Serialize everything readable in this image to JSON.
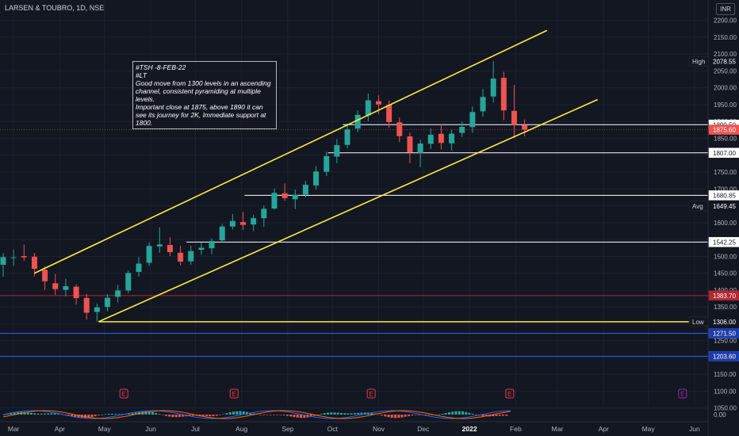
{
  "header": {
    "symbol_line": "LARSEN & TOUBRO, 1D, NSE",
    "currency": "INR"
  },
  "note": {
    "lines": [
      "#TSH -8-FEB-22",
      "#LT",
      "Good move from 1300 levels in an ascending channel, consistent pyramiding at multiple levels.",
      "Important close at 1875, above 1890 it can see its journey for 2K, Immediate support at 1800."
    ]
  },
  "chart_data": {
    "type": "candlestick",
    "price_axis": {
      "ticks": [
        "2200.00",
        "2150.00",
        "2100.00",
        "2050.00",
        "2000.00",
        "1950.00",
        "1900.00",
        "1850.00",
        "1800.00",
        "1750.00",
        "1700.00",
        "1650.00",
        "1600.00",
        "1550.00",
        "1500.00",
        "1450.00",
        "1400.00",
        "1350.00",
        "1300.00",
        "1250.00",
        "1200.00",
        "1150.00",
        "1100.00",
        "1050.00"
      ],
      "range": [
        1040,
        2225
      ]
    },
    "time_axis": {
      "labels": [
        "Mar",
        "Apr",
        "May",
        "Jun",
        "Jul",
        "Aug",
        "Sep",
        "Oct",
        "Nov",
        "Dec",
        "2022",
        "Feb",
        "Mar",
        "Apr",
        "May",
        "Jun"
      ]
    },
    "price_labels": [
      {
        "label": "High",
        "value": "2078.55",
        "style": "tag"
      },
      {
        "label": "",
        "value": "1890.50",
        "style": "line"
      },
      {
        "label": "",
        "value": "1875.60",
        "style": "last"
      },
      {
        "label": "",
        "value": "1807.00",
        "style": "line"
      },
      {
        "label": "",
        "value": "1680.85",
        "style": "line"
      },
      {
        "label": "Avg",
        "value": "1649.45",
        "style": "tag"
      },
      {
        "label": "",
        "value": "1542.25",
        "style": "line"
      },
      {
        "label": "",
        "value": "1383.70",
        "style": "red"
      },
      {
        "label": "Low",
        "value": "1306.00",
        "style": "tag"
      },
      {
        "label": "",
        "value": "1271.50",
        "style": "blue"
      },
      {
        "label": "",
        "value": "1203.60",
        "style": "blue"
      }
    ],
    "levels": [
      {
        "value": 1890.5,
        "from": "2021-10-08"
      },
      {
        "value": 1807.0,
        "from": "2021-09-28"
      },
      {
        "value": 1680.85,
        "from": "2021-08-03"
      },
      {
        "value": 1542.25,
        "from": "2021-06-25"
      }
    ],
    "channel": {
      "upper": [
        [
          "2021-03-15",
          1450
        ],
        [
          "2022-02-22",
          2170
        ]
      ],
      "lower": [
        [
          "2021-04-27",
          1306
        ],
        [
          "2022-03-28",
          1965
        ]
      ],
      "base": [
        [
          "2021-04-27",
          1306
        ],
        [
          "2022-05-31",
          1306
        ]
      ]
    },
    "events": {
      "label": "E",
      "dates": [
        "2021-05-14",
        "2021-07-27",
        "2021-10-27",
        "2022-01-28",
        "2022-05-24"
      ]
    },
    "oscillator_tick": "0.00",
    "colors": {
      "up": "#26a69a",
      "down": "#ef5350",
      "channel": "#ffeb3b",
      "level": "#ffffff",
      "last": "#f05350",
      "red_line": "#b22833",
      "blue_line": "#2962ff",
      "event": "#f23645",
      "event_future": "#9c27b0"
    },
    "ohlc_series": [
      [
        "2021-02-22",
        1475.0,
        1509.5,
        1439.0,
        1497.8
      ],
      [
        "2021-03-01",
        1496.9,
        1519.7,
        1471.5,
        1497.0
      ],
      [
        "2021-03-08",
        1500.7,
        1535.2,
        1486.2,
        1497.1
      ],
      [
        "2021-03-15",
        1499.0,
        1510.0,
        1440.5,
        1463.0
      ],
      [
        "2021-03-22",
        1460.0,
        1470.3,
        1400.0,
        1426.2
      ],
      [
        "2021-03-29",
        1420.2,
        1447.3,
        1385.8,
        1402.8
      ],
      [
        "2021-04-05",
        1400.6,
        1433.6,
        1381.5,
        1411.6
      ],
      [
        "2021-04-12",
        1410.0,
        1417.0,
        1357.1,
        1376.1
      ],
      [
        "2021-04-19",
        1376.7,
        1388.3,
        1312.5,
        1332.7
      ],
      [
        "2021-04-26",
        1335.0,
        1360.0,
        1306.0,
        1348.6
      ],
      [
        "2021-05-03",
        1350.0,
        1388.8,
        1336.7,
        1376.9
      ],
      [
        "2021-05-10",
        1380.0,
        1415.0,
        1363.0,
        1398.8
      ],
      [
        "2021-05-17",
        1398.6,
        1458.0,
        1390.8,
        1450.5
      ],
      [
        "2021-05-24",
        1453.7,
        1497.8,
        1440.1,
        1478.4
      ],
      [
        "2021-05-31",
        1480.7,
        1541.0,
        1471.6,
        1530.8
      ],
      [
        "2021-06-07",
        1529.3,
        1586.3,
        1510.9,
        1535.2
      ],
      [
        "2021-06-14",
        1533.7,
        1556.8,
        1500.4,
        1512.6
      ],
      [
        "2021-06-21",
        1510.6,
        1531.2,
        1473.0,
        1484.3
      ],
      [
        "2021-06-28",
        1485.1,
        1531.6,
        1475.6,
        1515.5
      ],
      [
        "2021-07-05",
        1519.5,
        1541.1,
        1505.0,
        1525.4
      ],
      [
        "2021-07-12",
        1523.9,
        1553.3,
        1506.1,
        1545.5
      ],
      [
        "2021-07-19",
        1547.4,
        1596.6,
        1540.1,
        1588.4
      ],
      [
        "2021-07-26",
        1588.5,
        1625.7,
        1580.1,
        1604.7
      ],
      [
        "2021-08-02",
        1601.7,
        1632.0,
        1578.5,
        1593.2
      ],
      [
        "2021-08-09",
        1594.4,
        1623.7,
        1574.8,
        1613.1
      ],
      [
        "2021-08-16",
        1613.3,
        1650.6,
        1587.3,
        1641.1
      ],
      [
        "2021-08-23",
        1641.8,
        1701.3,
        1637.7,
        1688.2
      ],
      [
        "2021-08-30",
        1687.0,
        1716.1,
        1664.8,
        1672.8
      ],
      [
        "2021-09-06",
        1669.5,
        1698.0,
        1640.1,
        1682.6
      ],
      [
        "2021-09-13",
        1683.3,
        1723.7,
        1675.0,
        1712.3
      ],
      [
        "2021-09-20",
        1710.3,
        1767.4,
        1697.9,
        1751.5
      ],
      [
        "2021-09-27",
        1750.7,
        1810.1,
        1738.2,
        1797.2
      ],
      [
        "2021-10-04",
        1795.9,
        1847.7,
        1776.4,
        1829.7
      ],
      [
        "2021-10-11",
        1830.6,
        1894.4,
        1820.2,
        1876.4
      ],
      [
        "2021-10-18",
        1879.0,
        1933.7,
        1868.4,
        1919.7
      ],
      [
        "2021-10-25",
        1918.1,
        1982.8,
        1900.4,
        1962.8
      ],
      [
        "2021-11-01",
        1960.2,
        1977.4,
        1921.4,
        1950.4
      ],
      [
        "2021-11-08",
        1949.5,
        1962.5,
        1880.6,
        1898.2
      ],
      [
        "2021-11-15",
        1897.6,
        1911.7,
        1838.5,
        1856.4
      ],
      [
        "2021-11-22",
        1855.6,
        1867.6,
        1776.0,
        1808.8
      ],
      [
        "2021-11-29",
        1806.7,
        1845.7,
        1764.7,
        1834.5
      ],
      [
        "2021-12-06",
        1833.8,
        1879.6,
        1818.4,
        1860.6
      ],
      [
        "2021-12-13",
        1863.4,
        1893.1,
        1816.9,
        1836.2
      ],
      [
        "2021-12-20",
        1835.2,
        1875.1,
        1813.5,
        1863.6
      ],
      [
        "2021-12-27",
        1866.2,
        1900.2,
        1854.5,
        1884.1
      ],
      [
        "2022-01-03",
        1883.4,
        1943.8,
        1866.5,
        1928.2
      ],
      [
        "2022-01-10",
        1930.1,
        1996.7,
        1914.5,
        1972.7
      ],
      [
        "2022-01-17",
        1974.0,
        2078.6,
        1956.1,
        2027.2
      ],
      [
        "2022-01-24",
        2029.3,
        2047.5,
        1904.0,
        1932.8
      ],
      [
        "2022-01-31",
        1931.4,
        2008.5,
        1850.4,
        1890.3
      ],
      [
        "2022-02-07",
        1889.7,
        1905.9,
        1855.6,
        1875.6
      ]
    ]
  }
}
